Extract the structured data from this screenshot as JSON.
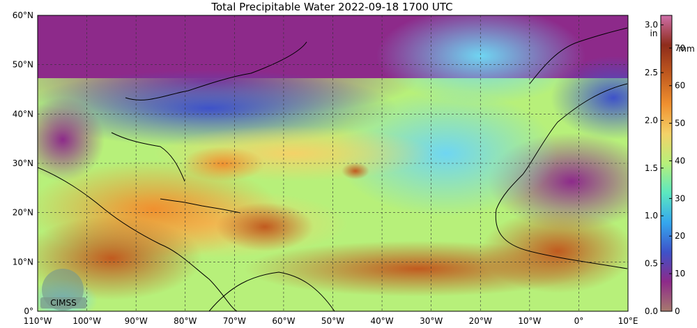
{
  "title": "Total Precipitable Water  2022-09-18 1700 UTC",
  "map": {
    "lon_range": [
      -110,
      10
    ],
    "lat_range": [
      0,
      60
    ],
    "lat_labels": [
      "60°N",
      "50°N",
      "40°N",
      "30°N",
      "20°N",
      "10°N",
      "0°"
    ],
    "lon_labels": [
      "110°W",
      "100°W",
      "90°W",
      "80°W",
      "70°W",
      "60°W",
      "50°W",
      "40°W",
      "30°W",
      "20°W",
      "10°W",
      "0°",
      "10°E"
    ],
    "gridlines": "dashed"
  },
  "colorbar": {
    "unit_left": "in",
    "unit_right": "mm",
    "inch_ticks": [
      "3.0",
      "2.5",
      "2.0",
      "1.5",
      "1.0",
      "0.5",
      "0.0"
    ],
    "inch_values": [
      3.0,
      2.5,
      2.0,
      1.5,
      1.0,
      0.5,
      0.0
    ],
    "mm_ticks": [
      "70",
      "60",
      "50",
      "40",
      "30",
      "20",
      "10",
      "0"
    ],
    "mm_values": [
      70,
      60,
      50,
      40,
      30,
      20,
      10,
      0
    ],
    "colors": [
      "#a77a6e",
      "#8d2a8a",
      "#3e52c9",
      "#35a7ee",
      "#5ce8c0",
      "#b7f07a",
      "#f4d268",
      "#f0902f",
      "#c15a1f",
      "#8e2c1b",
      "#cf6fa9"
    ]
  },
  "logo": {
    "text": "CIMSS"
  }
}
